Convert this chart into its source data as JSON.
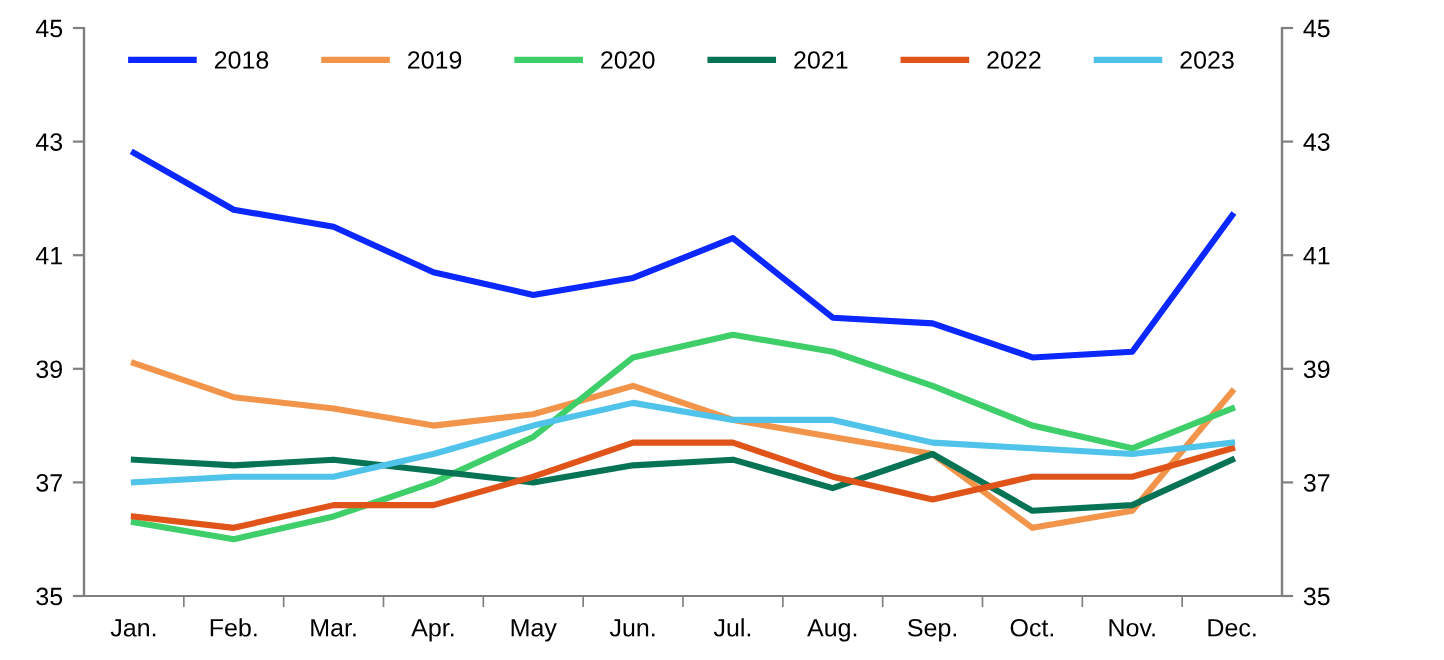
{
  "chart_data": {
    "type": "line",
    "categories": [
      "Jan.",
      "Feb.",
      "Mar.",
      "Apr.",
      "May",
      "Jun.",
      "Jul.",
      "Aug.",
      "Sep.",
      "Oct.",
      "Nov.",
      "Dec."
    ],
    "ylim": [
      35,
      45
    ],
    "yticks": [
      35,
      37,
      39,
      41,
      43,
      45
    ],
    "y2lim": [
      35,
      45
    ],
    "y2ticks": [
      35,
      37,
      39,
      41,
      43,
      45
    ],
    "legend": "top",
    "grid": false,
    "marker": "none",
    "line_style": "solid",
    "series": [
      {
        "name": "2018",
        "color": "#0a28ff",
        "values": [
          42.8,
          41.8,
          41.5,
          40.7,
          40.3,
          40.6,
          41.3,
          39.9,
          39.8,
          39.2,
          39.3,
          41.7
        ]
      },
      {
        "name": "2019",
        "color": "#f2944a",
        "values": [
          39.1,
          38.5,
          38.3,
          38.0,
          38.2,
          38.7,
          38.1,
          37.8,
          37.5,
          36.2,
          36.5,
          38.6
        ]
      },
      {
        "name": "2020",
        "color": "#3ecf6a",
        "values": [
          36.3,
          36.0,
          36.4,
          37.0,
          37.8,
          39.2,
          39.6,
          39.3,
          38.7,
          38.0,
          37.6,
          38.3
        ]
      },
      {
        "name": "2021",
        "color": "#077355",
        "values": [
          37.4,
          37.3,
          37.4,
          37.2,
          37.0,
          37.3,
          37.4,
          36.9,
          37.5,
          36.5,
          36.6,
          37.4
        ]
      },
      {
        "name": "2022",
        "color": "#e0541a",
        "values": [
          36.4,
          36.2,
          36.6,
          36.6,
          37.1,
          37.7,
          37.7,
          37.1,
          36.7,
          37.1,
          37.1,
          37.6
        ]
      },
      {
        "name": "2023",
        "color": "#4fc3ea",
        "values": [
          37.0,
          37.1,
          37.1,
          37.5,
          38.0,
          38.4,
          38.1,
          38.1,
          37.7,
          37.6,
          37.5,
          37.7
        ]
      }
    ]
  }
}
